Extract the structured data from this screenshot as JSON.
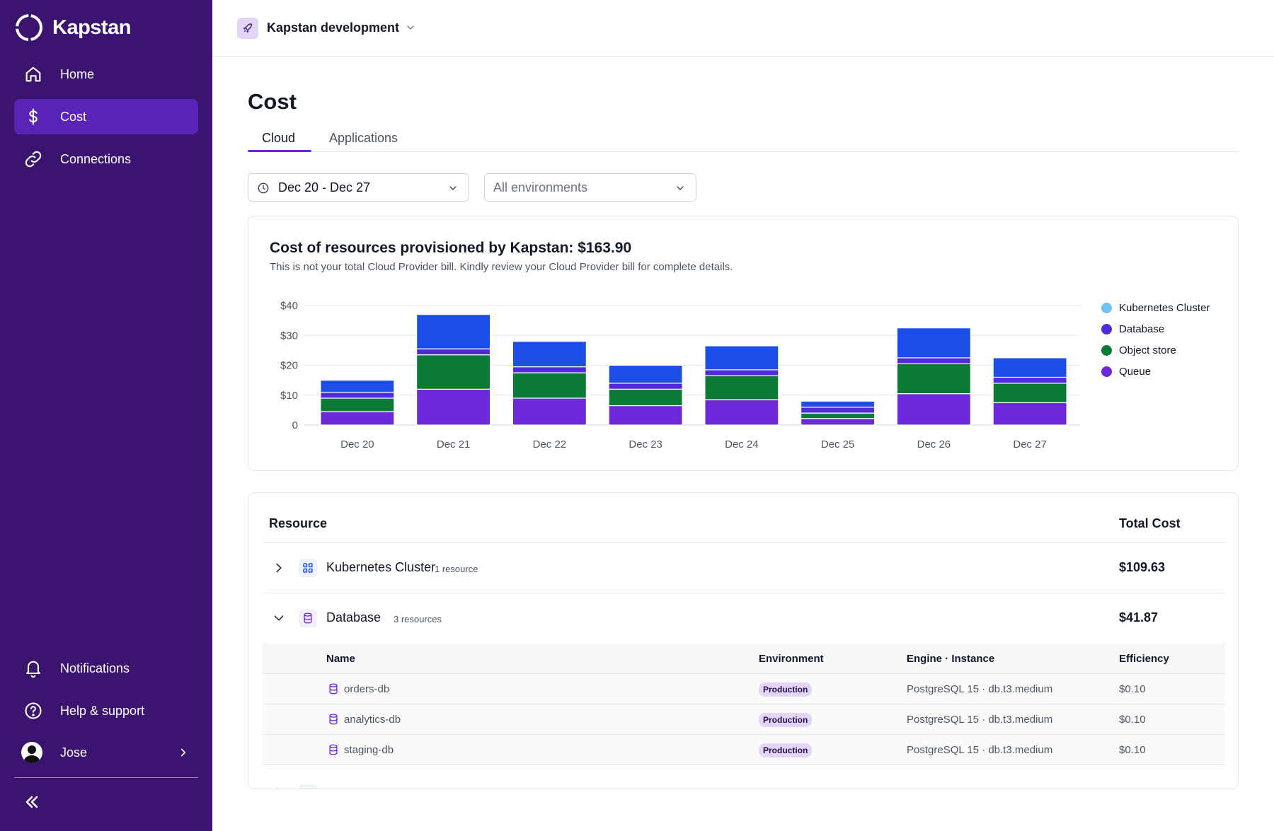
{
  "app": {
    "name": "Kapstan"
  },
  "sidebar": {
    "items": [
      {
        "label": "Home",
        "icon": "home-icon"
      },
      {
        "label": "Cost",
        "icon": "dollar-icon",
        "active": true
      },
      {
        "label": "Connections",
        "icon": "link-icon"
      }
    ],
    "bottom_items": [
      {
        "label": "Notifications",
        "icon": "bell-icon"
      },
      {
        "label": "Help & support",
        "icon": "help-icon"
      }
    ],
    "user": {
      "name": "Jose"
    }
  },
  "topbar": {
    "project": "Kapstan development"
  },
  "page": {
    "title": "Cost",
    "tabs": [
      {
        "label": "Cloud",
        "active": true
      },
      {
        "label": "Applications"
      }
    ]
  },
  "filters": {
    "date_range": "Dec 20 - Dec 27",
    "environment_placeholder": "All environments"
  },
  "chart": {
    "title": "Cost of resources provisioned by Kapstan: $163.90",
    "subtitle": "This is not your total Cloud Provider bill. Kindly review your Cloud Provider bill for complete details."
  },
  "chart_data": {
    "type": "bar",
    "stacked": true,
    "categories": [
      "Dec 20",
      "Dec 21",
      "Dec 22",
      "Dec 23",
      "Dec 24",
      "Dec 25",
      "Dec 26",
      "Dec 27"
    ],
    "series": [
      {
        "name": "Queue",
        "color": "#6d28d9",
        "values": [
          4.5,
          12,
          9,
          6.5,
          8.5,
          2.2,
          10.5,
          7.5
        ]
      },
      {
        "name": "Object store",
        "color": "#0b7a34",
        "values": [
          4.5,
          11.5,
          8.5,
          5.5,
          8,
          1.8,
          10,
          6.5
        ]
      },
      {
        "name": "Database",
        "color": "#4f2bdc",
        "values": [
          2,
          2,
          2,
          2,
          2,
          2,
          2,
          2
        ]
      },
      {
        "name": "Kubernetes Cluster",
        "color": "#1a4ee6",
        "values": [
          4,
          11.5,
          8.5,
          6,
          8,
          2,
          10,
          6.5
        ]
      }
    ],
    "legend": [
      {
        "name": "Kubernetes Cluster",
        "color": "#71c2f4"
      },
      {
        "name": "Database",
        "color": "#4f2bdc"
      },
      {
        "name": "Object store",
        "color": "#0b7a34"
      },
      {
        "name": "Queue",
        "color": "#6d28d9"
      }
    ],
    "yticks": [
      "0",
      "$10",
      "$20",
      "$30",
      "$40"
    ],
    "ylim": [
      0,
      40
    ],
    "grid": true,
    "legend_position": "right"
  },
  "table": {
    "header_resource": "Resource",
    "header_cost": "Total Cost",
    "groups": [
      {
        "name": "Kubernetes Cluster",
        "count": "1 resource",
        "cost": "$109.63"
      },
      {
        "name": "Database",
        "count": "3 resources",
        "cost": "$41.87"
      }
    ],
    "sub_headers": {
      "name": "Name",
      "environment": "Environment",
      "engine": "Engine · Instance",
      "efficiency": "Efficiency"
    },
    "rows": [
      {
        "name": "orders-db",
        "environment": "Production",
        "engine": "PostgreSQL 15 · db.t3.medium",
        "efficiency": "$0.10"
      },
      {
        "name": "analytics-db",
        "environment": "Production",
        "engine": "PostgreSQL 15 · db.t3.medium",
        "efficiency": "$0.10"
      },
      {
        "name": "staging-db",
        "environment": "Production",
        "engine": "PostgreSQL 15 · db.t3.medium",
        "efficiency": "$0.10"
      }
    ]
  }
}
